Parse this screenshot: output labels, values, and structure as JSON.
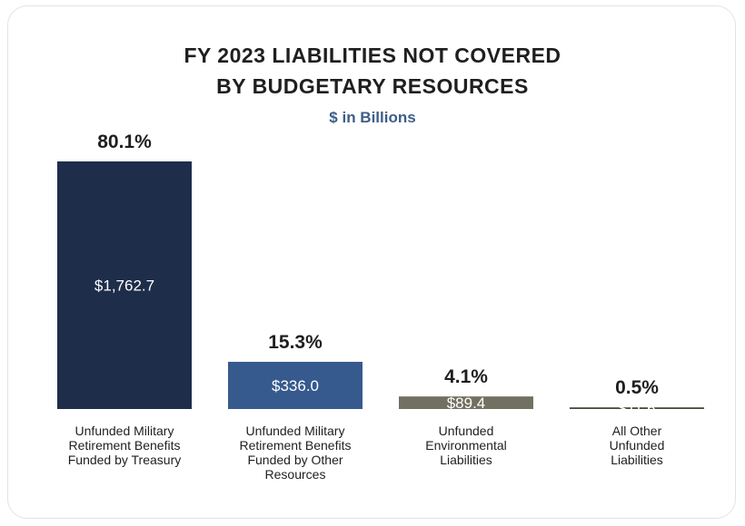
{
  "chart_data": {
    "type": "bar",
    "title": "FY 2023 LIABILITIES NOT COVERED BY BUDGETARY RESOURCES",
    "title_lines": [
      "FY 2023 LIABILITIES NOT COVERED",
      "BY BUDGETARY RESOURCES"
    ],
    "subtitle": "$ in Billions",
    "categories": [
      "Unfunded Military Retirement Benefits Funded by Treasury",
      "Unfunded Military Retirement Benefits Funded by Other Resources",
      "Unfunded Environmental Liabilities",
      "All Other Unfunded Liabilities"
    ],
    "values": [
      1762.7,
      336.0,
      89.4,
      11.6
    ],
    "value_labels": [
      "$1,762.7",
      "$336.0",
      "$89.4",
      "$11.6"
    ],
    "percent_labels": [
      "80.1%",
      "15.3%",
      "4.1%",
      "0.5%"
    ],
    "bar_colors": [
      "#1e2d4a",
      "#365a8e",
      "#727060",
      "#4a4738"
    ],
    "ylim": [
      0,
      1762.7
    ],
    "grid": false,
    "legend": "none"
  },
  "category_label_lines": [
    [
      "Unfunded Military",
      "Retirement Benefits",
      "Funded by Treasury"
    ],
    [
      "Unfunded Military",
      "Retirement Benefits",
      "Funded by Other",
      "Resources"
    ],
    [
      "Unfunded",
      "Environmental",
      "Liabilities"
    ],
    [
      "All Other",
      "Unfunded",
      "Liabilities"
    ]
  ]
}
